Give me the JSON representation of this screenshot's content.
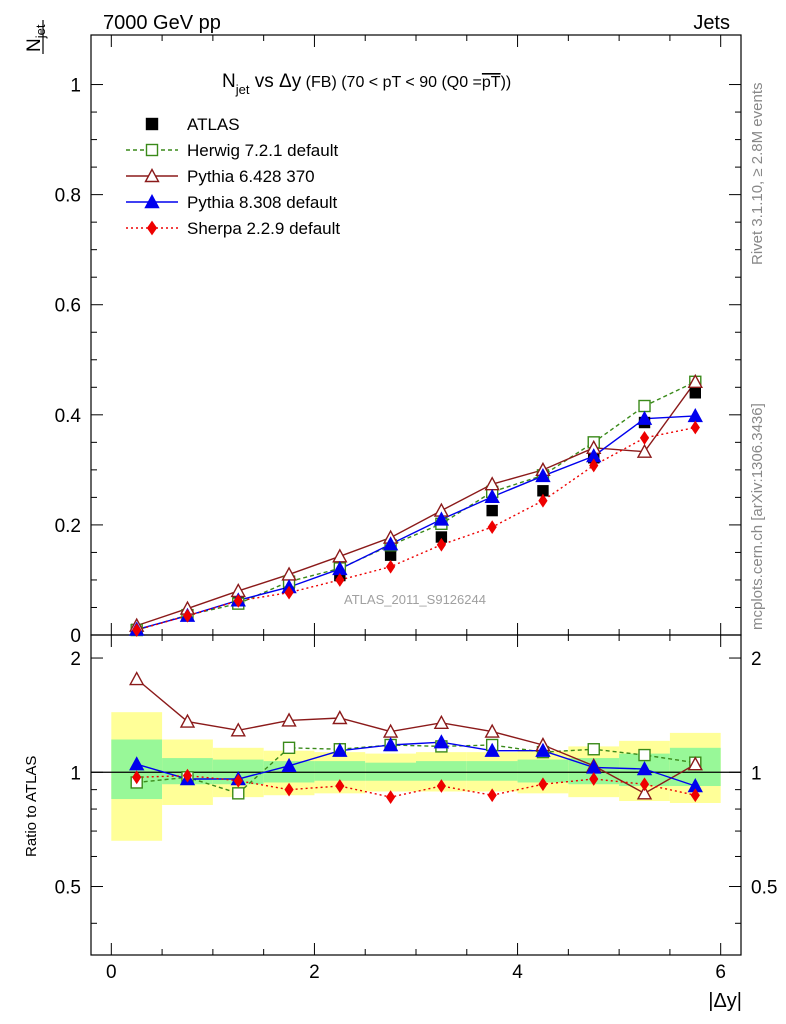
{
  "header": {
    "left": "7000 GeV pp",
    "right": "Jets",
    "side_top": "Rivet 3.1.10, ≥ 2.8M events",
    "side_bottom": "mcplots.cern.ch [arXiv:1306.3436]",
    "watermark": "ATLAS_2011_S9126244"
  },
  "colors": {
    "ATLAS": "#000000",
    "Herwig": "#3a8a1a",
    "Pythia6": "#8b1a1a",
    "Pythia8": "#0000ee",
    "Sherpa": "#ee0000",
    "band_inner": "#98f898",
    "band_outer": "#ffff98"
  },
  "chart_data": [
    {
      "type": "line",
      "title": {
        "n": "N",
        "sub": "jet",
        "mid": " vs Δy",
        "fb": " (FB) ",
        "rest": "(70 < pT <  90 (Q0 =",
        "pt": "pT",
        "close": "))"
      },
      "ylabel": {
        "num": "1",
        "den_n": "N",
        "den_sub": "jet"
      },
      "xlim": [
        -0.2,
        6.2
      ],
      "ylim": [
        0,
        1.09
      ],
      "yticks": [
        "0",
        "0.2",
        "0.4",
        "0.6",
        "0.8",
        "1"
      ],
      "x": [
        0.25,
        0.75,
        1.25,
        1.75,
        2.25,
        2.75,
        3.25,
        3.75,
        4.25,
        4.75,
        5.25,
        5.75
      ],
      "series": [
        {
          "name": "ATLAS",
          "key": "ATLAS",
          "marker": "square",
          "values": [
            0.01,
            0.037,
            0.065,
            0.087,
            0.108,
            0.145,
            0.178,
            0.226,
            0.262,
            0.322,
            0.386,
            0.44
          ]
        },
        {
          "name": "Herwig 7.2.1 default",
          "key": "Herwig",
          "marker": "open-square",
          "dash": "4,3",
          "values": [
            0.009,
            0.036,
            0.057,
            0.097,
            0.121,
            0.163,
            0.202,
            0.26,
            0.29,
            0.35,
            0.416,
            0.46
          ]
        },
        {
          "name": "Pythia 6.428 370",
          "key": "Pythia6",
          "marker": "open-triangle",
          "values": [
            0.017,
            0.048,
            0.08,
            0.11,
            0.143,
            0.177,
            0.226,
            0.274,
            0.3,
            0.34,
            0.333,
            0.46
          ]
        },
        {
          "name": "Pythia 8.308 default",
          "key": "Pythia8",
          "marker": "triangle",
          "values": [
            0.01,
            0.035,
            0.063,
            0.087,
            0.12,
            0.165,
            0.21,
            0.251,
            0.289,
            0.325,
            0.393,
            0.398
          ]
        },
        {
          "name": "Sherpa 2.2.9 default",
          "key": "Sherpa",
          "marker": "diamond",
          "dash": "2,3",
          "values": [
            0.009,
            0.035,
            0.062,
            0.077,
            0.1,
            0.124,
            0.164,
            0.196,
            0.244,
            0.308,
            0.358,
            0.377
          ]
        }
      ]
    },
    {
      "type": "line",
      "ylabel": "Ratio to ATLAS",
      "xlabel": "|Δy|",
      "xlim": [
        -0.2,
        6.2
      ],
      "ylim": [
        0.33,
        2.3
      ],
      "yticks": [
        "0.5",
        "1",
        "2"
      ],
      "xticks": [
        "0",
        "2",
        "4",
        "6"
      ],
      "x": [
        0.25,
        0.75,
        1.25,
        1.75,
        2.25,
        2.75,
        3.25,
        3.75,
        4.25,
        4.75,
        5.25,
        5.75
      ],
      "bins": [
        [
          0,
          0.5
        ],
        [
          0.5,
          1.0
        ],
        [
          1.0,
          1.5
        ],
        [
          1.5,
          2.0
        ],
        [
          2.0,
          2.5
        ],
        [
          2.5,
          3.0
        ],
        [
          3.0,
          3.5
        ],
        [
          3.5,
          4.0
        ],
        [
          4.0,
          4.5
        ],
        [
          4.5,
          5.0
        ],
        [
          5.0,
          5.5
        ],
        [
          5.5,
          6.0
        ]
      ],
      "band_inner": [
        [
          0.85,
          1.22
        ],
        [
          0.93,
          1.09
        ],
        [
          0.93,
          1.08
        ],
        [
          0.94,
          1.07
        ],
        [
          0.95,
          1.07
        ],
        [
          0.95,
          1.06
        ],
        [
          0.95,
          1.07
        ],
        [
          0.95,
          1.07
        ],
        [
          0.94,
          1.08
        ],
        [
          0.93,
          1.09
        ],
        [
          0.92,
          1.12
        ],
        [
          0.92,
          1.16
        ]
      ],
      "band_outer": [
        [
          0.66,
          1.44
        ],
        [
          0.82,
          1.22
        ],
        [
          0.86,
          1.16
        ],
        [
          0.87,
          1.14
        ],
        [
          0.88,
          1.13
        ],
        [
          0.89,
          1.12
        ],
        [
          0.89,
          1.13
        ],
        [
          0.89,
          1.13
        ],
        [
          0.88,
          1.14
        ],
        [
          0.86,
          1.17
        ],
        [
          0.84,
          1.21
        ],
        [
          0.83,
          1.27
        ]
      ],
      "series": [
        {
          "name": "Herwig 7.2.1 default",
          "key": "Herwig",
          "marker": "open-square",
          "dash": "4,3",
          "values": [
            0.94,
            0.97,
            0.88,
            1.16,
            1.15,
            1.18,
            1.17,
            1.18,
            1.13,
            1.15,
            1.11,
            1.06
          ]
        },
        {
          "name": "Pythia 6.428 370",
          "key": "Pythia6",
          "marker": "open-triangle",
          "values": [
            1.76,
            1.36,
            1.29,
            1.37,
            1.39,
            1.28,
            1.35,
            1.28,
            1.18,
            1.04,
            0.88,
            1.05
          ]
        },
        {
          "name": "Pythia 8.308 default",
          "key": "Pythia8",
          "marker": "triangle",
          "values": [
            1.05,
            0.96,
            0.96,
            1.04,
            1.14,
            1.18,
            1.2,
            1.14,
            1.14,
            1.03,
            1.02,
            0.92
          ]
        },
        {
          "name": "Sherpa 2.2.9 default",
          "key": "Sherpa",
          "marker": "diamond",
          "dash": "2,3",
          "values": [
            0.97,
            0.98,
            0.95,
            0.9,
            0.92,
            0.86,
            0.92,
            0.87,
            0.93,
            0.96,
            0.93,
            0.87
          ]
        }
      ]
    }
  ]
}
